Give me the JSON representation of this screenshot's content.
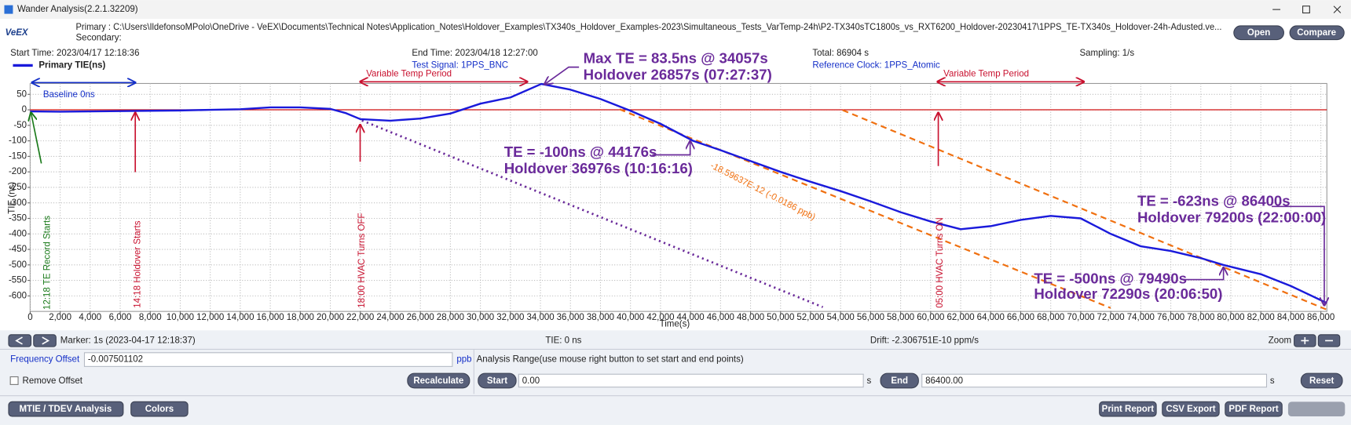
{
  "window": {
    "title": "Wander Analysis(2.2.1.32209)"
  },
  "header": {
    "logo": "VeEX",
    "primary": "Primary : C:\\Users\\IldefonsoMPolo\\OneDrive - VeEX\\Documents\\Technical Notes\\Application_Notes\\Holdover_Examples\\TX340s_Holdover_Examples-2023\\Simultaneous_Tests_VarTemp-24h\\P2-TX340sTC1800s_vs_RXT6200_Holdover-20230417\\1PPS_TE-TX340s_Holdover-24h-Adusted.ve...",
    "secondary": "Secondary:",
    "open": "Open",
    "compare": "Compare"
  },
  "info": {
    "start_time": "Start Time: 2023/04/17 12:18:36",
    "end_time": "End Time: 2023/04/18 12:27:00",
    "total": "Total: 86904  s",
    "sampling": "Sampling: 1/s",
    "test_signal": "Test Signal:  1PPS_BNC",
    "reference_clock": "Reference Clock: 1PPS_Atomic"
  },
  "chart_data": {
    "type": "line",
    "x_label": "Time(s)",
    "y_label": "TIE (ns)",
    "xlim": [
      0,
      86400
    ],
    "ylim": [
      -650,
      85
    ],
    "grid": true,
    "xticks": [
      0,
      {
        "value": 2000,
        "label": "2,000"
      },
      {
        "value": 4000,
        "label": "4,000"
      },
      {
        "value": 6000,
        "label": "6,000"
      },
      {
        "value": 8000,
        "label": "8,000"
      },
      {
        "value": 10000,
        "label": "10,000"
      },
      {
        "value": 12000,
        "label": "12,000"
      },
      {
        "value": 14000,
        "label": "14,000"
      },
      {
        "value": 16000,
        "label": "16,000"
      },
      {
        "value": 18000,
        "label": "18,000"
      },
      {
        "value": 20000,
        "label": "20,000"
      },
      {
        "value": 22000,
        "label": "22,000"
      },
      {
        "value": 24000,
        "label": "24,000"
      },
      {
        "value": 26000,
        "label": "26,000"
      },
      {
        "value": 28000,
        "label": "28,000"
      },
      {
        "value": 30000,
        "label": "30,000"
      },
      {
        "value": 32000,
        "label": "32,000"
      },
      {
        "value": 34000,
        "label": "34,000"
      },
      {
        "value": 36000,
        "label": "36,000"
      },
      {
        "value": 38000,
        "label": "38,000"
      },
      {
        "value": 40000,
        "label": "40,000"
      },
      {
        "value": 42000,
        "label": "42,000"
      },
      {
        "value": 44000,
        "label": "44,000"
      },
      {
        "value": 46000,
        "label": "46,000"
      },
      {
        "value": 48000,
        "label": "48,000"
      },
      {
        "value": 50000,
        "label": "50,000"
      },
      {
        "value": 52000,
        "label": "52,000"
      },
      {
        "value": 54000,
        "label": "54,000"
      },
      {
        "value": 56000,
        "label": "56,000"
      },
      {
        "value": 58000,
        "label": "58,000"
      },
      {
        "value": 60000,
        "label": "60,000"
      },
      {
        "value": 62000,
        "label": "62,000"
      },
      {
        "value": 64000,
        "label": "64,000"
      },
      {
        "value": 66000,
        "label": "66,000"
      },
      {
        "value": 68000,
        "label": "68,000"
      },
      {
        "value": 70000,
        "label": "70,000"
      },
      {
        "value": 72000,
        "label": "72,000"
      },
      {
        "value": 74000,
        "label": "74,000"
      },
      {
        "value": 76000,
        "label": "76,000"
      },
      {
        "value": 78000,
        "label": "78,000"
      },
      {
        "value": 80000,
        "label": "80,000"
      },
      {
        "value": 82000,
        "label": "82,000"
      },
      {
        "value": 84000,
        "label": "84,000"
      },
      {
        "value": 86000,
        "label": "86,000"
      }
    ],
    "yticks": [
      -600,
      -550,
      -500,
      -450,
      -400,
      -350,
      -300,
      -250,
      -200,
      -150,
      -100,
      -50,
      0,
      50
    ],
    "x": [
      0,
      2000,
      4000,
      6000,
      8000,
      10000,
      12000,
      14000,
      16000,
      18000,
      20000,
      21000,
      22000,
      24000,
      26000,
      28000,
      30000,
      32000,
      34057,
      36000,
      38000,
      40000,
      42000,
      44176,
      46000,
      48000,
      50000,
      52000,
      54000,
      56000,
      58000,
      60000,
      62000,
      64000,
      66000,
      68000,
      70000,
      72000,
      74000,
      76000,
      78000,
      79490,
      82000,
      84000,
      86400
    ],
    "series": [
      {
        "name": "Primary TIE(ns)",
        "color": "#1a1adb",
        "values": [
          -5,
          -6,
          -5,
          -4,
          -3,
          -2,
          0,
          2,
          8,
          8,
          3,
          -10,
          -30,
          -35,
          -28,
          -12,
          20,
          40,
          83.5,
          65,
          35,
          -3,
          -45,
          -100,
          -130,
          -165,
          -200,
          -232,
          -262,
          -295,
          -330,
          -360,
          -385,
          -375,
          -355,
          -342,
          -350,
          -400,
          -440,
          -455,
          -478,
          -500,
          -530,
          -568,
          -623
        ]
      }
    ],
    "annotations": [
      "Baseline 0ns",
      "Variable Temp Period",
      "Variable Temp Period",
      "Max TE = 83.5ns @ 34057s",
      "Holdover 26857s (07:27:37)",
      "TE = -100ns @ 44176s",
      "Holdover 36976s (10:16:16)",
      "-18.59637E-12 (-0.0186 ppb)",
      "TE = -623ns @ 86400s",
      "Holdover 79200s (22:00:00)",
      "TE = -500ns @ 79490s",
      "Holdover 72290s (20:06:50)",
      "12:18 TE Record Starts",
      "14:18 Holdover Starts",
      "18:00 HVAC Turns OFF",
      "05:00 HVAC Turns ON"
    ]
  },
  "status": {
    "marker": "Marker: 1s (2023-04-17 12:18:37)",
    "tie": "TIE: 0 ns",
    "drift": "Drift: -2.306751E-10 ppm/s",
    "zoom": "Zoom"
  },
  "controls": {
    "frequency_offset_label": "Frequency Offset",
    "frequency_offset": "-0.007501102",
    "ppb": "ppb",
    "remove_offset": "Remove Offset",
    "recalculate": "Recalculate",
    "analysis_range": "Analysis Range(use mouse right button to set start and end points)",
    "start": "Start",
    "start_value": "0.00",
    "start_unit": "s",
    "end": "End",
    "end_value": "86400.00",
    "end_unit": "s",
    "reset": "Reset"
  },
  "footer": {
    "mtie": "MTIE / TDEV Analysis",
    "colors": "Colors",
    "print": "Print Report",
    "csv": "CSV Export",
    "pdf": "PDF Report"
  }
}
